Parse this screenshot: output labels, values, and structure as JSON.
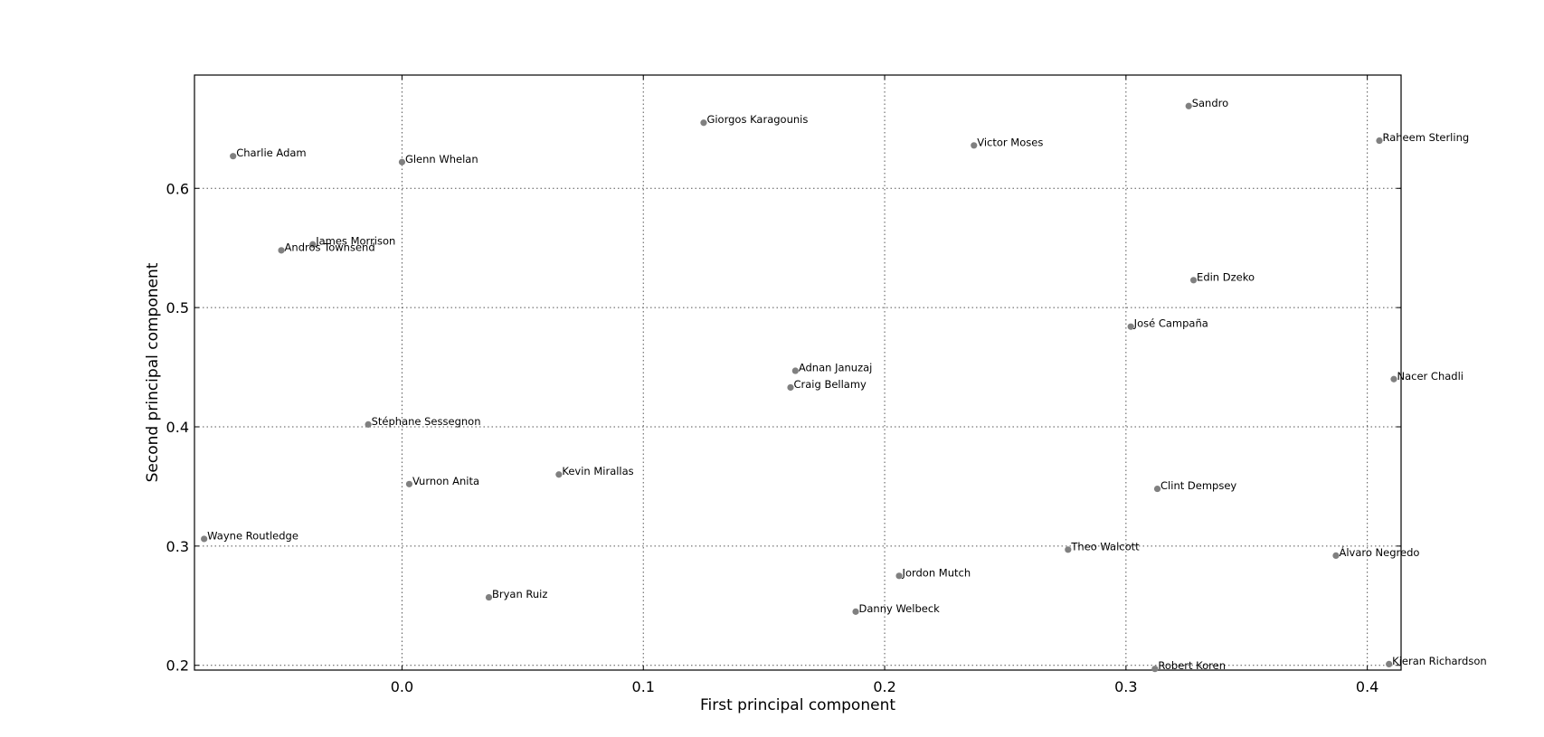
{
  "chart_data": {
    "type": "scatter",
    "title": "",
    "xlabel": "First principal component",
    "ylabel": "Second principal component",
    "xlim": [
      -0.086,
      0.414
    ],
    "ylim": [
      0.196,
      0.695
    ],
    "xticks": [
      0.0,
      0.1,
      0.2,
      0.3,
      0.4
    ],
    "xtick_labels": [
      "0.0",
      "0.1",
      "0.2",
      "0.3",
      "0.4"
    ],
    "yticks": [
      0.2,
      0.3,
      0.4,
      0.5,
      0.6
    ],
    "ytick_labels": [
      "0.2",
      "0.3",
      "0.4",
      "0.5",
      "0.6"
    ],
    "grid": true,
    "marker_color": "#808080",
    "points": [
      {
        "label": "Sandro",
        "x": 0.326,
        "y": 0.669
      },
      {
        "label": "Giorgos Karagounis",
        "x": 0.125,
        "y": 0.655
      },
      {
        "label": "Raheem Sterling",
        "x": 0.405,
        "y": 0.64
      },
      {
        "label": "Victor Moses",
        "x": 0.237,
        "y": 0.636
      },
      {
        "label": "Charlie Adam",
        "x": -0.07,
        "y": 0.627
      },
      {
        "label": "Glenn Whelan",
        "x": 0.0,
        "y": 0.622
      },
      {
        "label": "James Morrison",
        "x": -0.037,
        "y": 0.553
      },
      {
        "label": "Andros Townsend",
        "x": -0.05,
        "y": 0.548
      },
      {
        "label": "Edin Dzeko",
        "x": 0.328,
        "y": 0.523
      },
      {
        "label": "José Campaña",
        "x": 0.302,
        "y": 0.484
      },
      {
        "label": "Adnan Januzaj",
        "x": 0.163,
        "y": 0.447
      },
      {
        "label": "Nacer Chadli",
        "x": 0.411,
        "y": 0.44
      },
      {
        "label": "Craig Bellamy",
        "x": 0.161,
        "y": 0.433
      },
      {
        "label": "Stéphane Sessegnon",
        "x": -0.014,
        "y": 0.402
      },
      {
        "label": "Kevin Mirallas",
        "x": 0.065,
        "y": 0.36
      },
      {
        "label": "Vurnon Anita",
        "x": 0.003,
        "y": 0.352
      },
      {
        "label": "Clint Dempsey",
        "x": 0.313,
        "y": 0.348
      },
      {
        "label": "Wayne Routledge",
        "x": -0.082,
        "y": 0.306
      },
      {
        "label": "Theo Walcott",
        "x": 0.276,
        "y": 0.297
      },
      {
        "label": "Álvaro Negredo",
        "x": 0.387,
        "y": 0.292
      },
      {
        "label": "Jordon Mutch",
        "x": 0.206,
        "y": 0.275
      },
      {
        "label": "Bryan Ruiz",
        "x": 0.036,
        "y": 0.257
      },
      {
        "label": "Danny Welbeck",
        "x": 0.188,
        "y": 0.245
      },
      {
        "label": "Kieran Richardson",
        "x": 0.409,
        "y": 0.201
      },
      {
        "label": "Robert Koren",
        "x": 0.312,
        "y": 0.197
      }
    ]
  }
}
